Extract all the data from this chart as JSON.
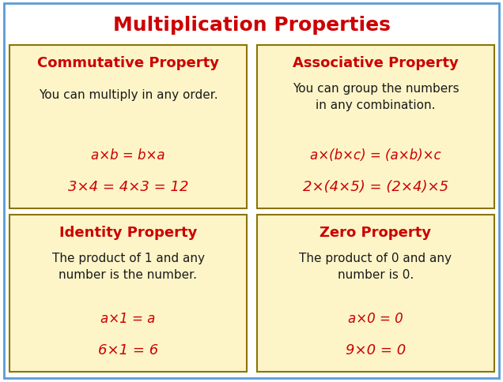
{
  "title": "Multiplication Properties",
  "title_color": "#cc0000",
  "title_fontsize": 18,
  "bg_color": "#ffffff",
  "outer_border_color": "#5b9bd5",
  "box_bg_color": "#fdf5c8",
  "box_border_color": "#8b7500",
  "header_color": "#cc0000",
  "body_color": "#1a1a1a",
  "formula_color": "#cc0000",
  "boxes": [
    {
      "header": "Commutative Property",
      "body": "You can multiply in any order.",
      "body_lines": 1,
      "formula1": "a×b = b×a",
      "formula2": "3×4 = 4×3 = 12",
      "col": 0,
      "row": 1
    },
    {
      "header": "Associative Property",
      "body": "You can group the numbers\nin any combination.",
      "body_lines": 2,
      "formula1": "a×(b×c) = (a×b)×c",
      "formula2": "2×(4×5) = (2×4)×5",
      "col": 1,
      "row": 1
    },
    {
      "header": "Identity Property",
      "body": "The product of 1 and any\nnumber is the number.",
      "body_lines": 2,
      "formula1": "a×1 = a",
      "formula2": "6×1 = 6",
      "col": 0,
      "row": 0
    },
    {
      "header": "Zero Property",
      "body": "The product of 0 and any\nnumber is 0.",
      "body_lines": 2,
      "formula1": "a×0 = 0",
      "formula2": "9×0 = 0",
      "col": 1,
      "row": 0
    }
  ]
}
